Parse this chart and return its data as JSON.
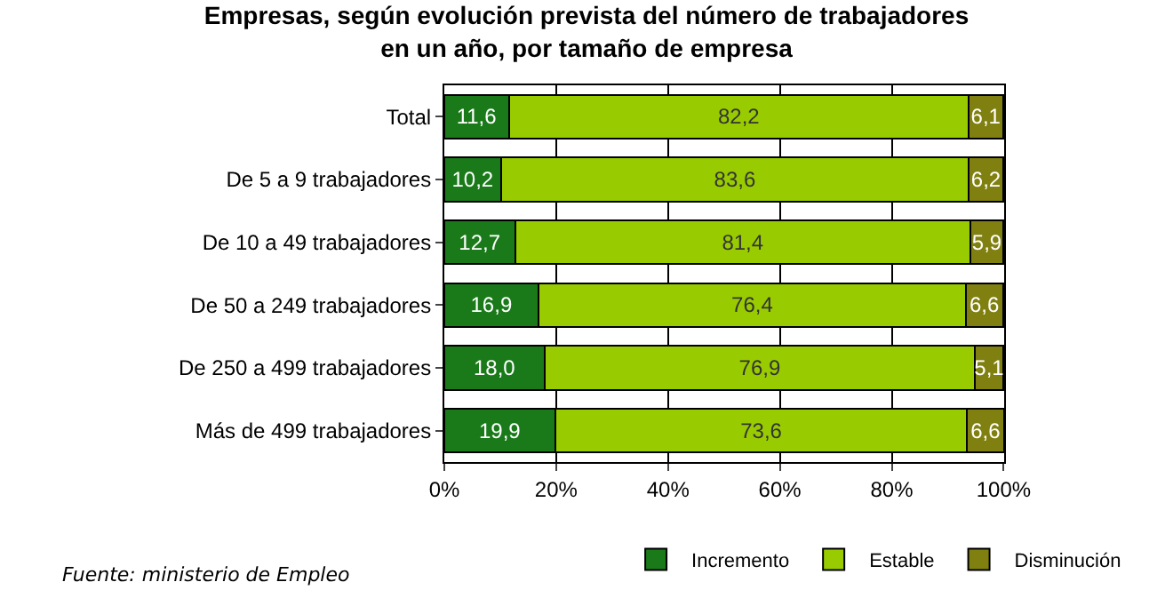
{
  "chart_data": {
    "type": "bar",
    "orientation": "horizontal",
    "stacked": true,
    "title": "Empresas, según evolución prevista del número de trabajadores\nen un año, por tamaño de empresa",
    "categories": [
      "Total",
      "De 5 a 9 trabajadores",
      "De 10 a 49 trabajadores",
      "De 50 a 249 trabajadores",
      "De 250 a 499 trabajadores",
      "Más de 499 trabajadores"
    ],
    "series": [
      {
        "name": "Incremento",
        "color": "#1a7a1a",
        "values": [
          11.6,
          10.2,
          12.7,
          16.9,
          18.0,
          19.9
        ],
        "value_labels": [
          "11,6",
          "10,2",
          "12,7",
          "16,9",
          "18,0",
          "19,9"
        ]
      },
      {
        "name": "Estable",
        "color": "#99cc00",
        "values": [
          82.2,
          83.6,
          81.4,
          76.4,
          76.9,
          73.6
        ],
        "value_labels": [
          "82,2",
          "83,6",
          "81,4",
          "76,4",
          "76,9",
          "73,6"
        ]
      },
      {
        "name": "Disminución",
        "color": "#808010",
        "values": [
          6.1,
          6.2,
          5.9,
          6.6,
          5.1,
          6.6
        ],
        "value_labels": [
          "6,1",
          "6,2",
          "5,9",
          "6,6",
          "5,1",
          "6,6"
        ]
      }
    ],
    "xlim": [
      0,
      100.1
    ],
    "xticks": [
      {
        "value": 0,
        "label": "0%"
      },
      {
        "value": 20,
        "label": "20%"
      },
      {
        "value": 40,
        "label": "40%"
      },
      {
        "value": 60,
        "label": "60%"
      },
      {
        "value": 80,
        "label": "80%"
      },
      {
        "value": 100,
        "label": "100%"
      }
    ],
    "grid": "x",
    "legend": "bottom",
    "annotations": [
      "Fuente: ministerio de Empleo"
    ]
  }
}
